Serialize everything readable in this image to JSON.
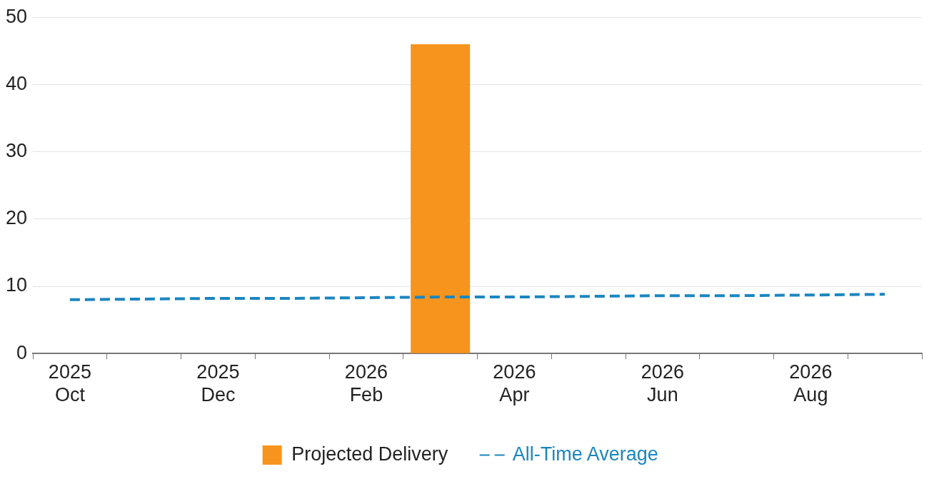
{
  "chart_data": {
    "type": "bar",
    "categories": [
      "2025\nOct",
      null,
      "2025\nDec",
      null,
      "2026\nFeb",
      null,
      "2026\nApr",
      null,
      "2026\nJun",
      null,
      "2026\nAug",
      null
    ],
    "series": [
      {
        "name": "Projected Delivery",
        "color": "#f7941d",
        "values": [
          null,
          null,
          null,
          null,
          null,
          46,
          null,
          null,
          null,
          null,
          null,
          null
        ]
      },
      {
        "name": "All-Time Average",
        "type": "line",
        "color": "#1b86c0",
        "values": [
          8.0,
          8.1,
          8.2,
          8.2,
          8.3,
          8.4,
          8.4,
          8.5,
          8.6,
          8.6,
          8.7,
          8.8
        ]
      }
    ],
    "ylim": [
      0,
      50
    ],
    "yticks": [
      0,
      10,
      20,
      30,
      40,
      50
    ],
    "grid": "y",
    "legend": "bottom",
    "line_style": "dashed",
    "marker": "none"
  }
}
